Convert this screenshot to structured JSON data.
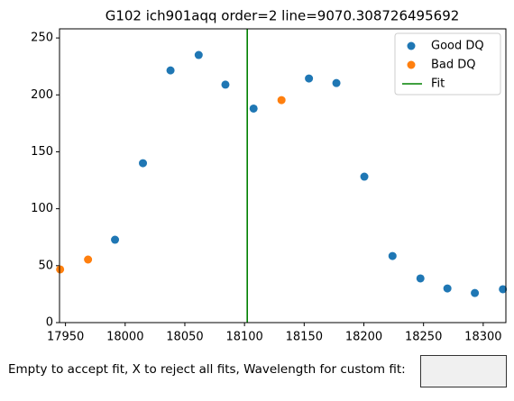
{
  "chart_data": {
    "type": "scatter",
    "title": "G102 ich901aqq order=2 line=9070.308726495692",
    "series": [
      {
        "name": "Good DQ",
        "color": "#1f77b4",
        "x": [
          17991.5,
          18014.9,
          18038,
          18061.6,
          18084,
          18107.6,
          18154,
          18177,
          18200.4,
          18224,
          18247.4,
          18270,
          18293,
          18316.5
        ],
        "values": [
          72.8,
          140,
          221.5,
          235,
          209,
          188,
          214.4,
          210.4,
          128.2,
          58.5,
          38.8,
          30,
          26,
          29.3
        ]
      },
      {
        "name": "Bad DQ",
        "color": "#ff7f0e",
        "x": [
          17945.5,
          17968.9,
          18131
        ],
        "values": [
          46.7,
          55.4,
          195.4
        ]
      }
    ],
    "fit": {
      "name": "Fit",
      "color": "green",
      "x": 18102.3
    },
    "xlim": [
      17945,
      18319
    ],
    "xticks": [
      17950,
      18000,
      18050,
      18100,
      18150,
      18200,
      18250,
      18300
    ],
    "ylim": [
      0,
      258
    ],
    "yticks": [
      0,
      50,
      100,
      150,
      200,
      250
    ],
    "legend": "upper right"
  },
  "prompt": "Empty to accept fit, X to reject all fits, Wavelength for custom fit:"
}
